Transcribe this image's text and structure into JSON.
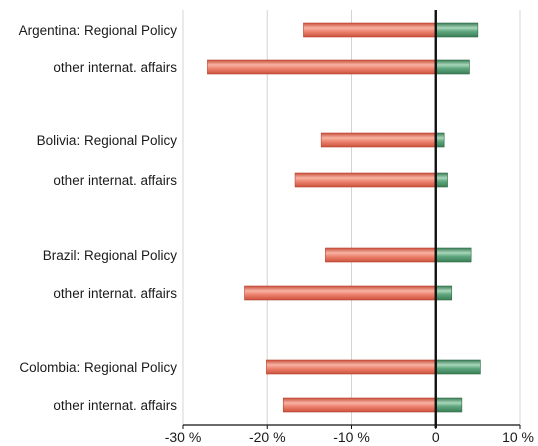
{
  "chart_data": {
    "type": "bar",
    "orientation": "horizontal",
    "categories": [
      "Argentina: Regional Policy",
      "other internat. affairs",
      "Bolivia: Regional Policy",
      "other internat. affairs",
      "Brazil: Regional Policy",
      "other internat. affairs",
      "Colombia: Regional Policy",
      "other internat. affairs"
    ],
    "series": [
      {
        "values": [
          -15.7,
          -27.1,
          -13.6,
          -16.7,
          -13.1,
          -22.7,
          -20.1,
          -18.1
        ],
        "color": "#e8705a"
      },
      {
        "values": [
          5.0,
          4.0,
          1.0,
          1.4,
          4.2,
          1.9,
          5.3,
          3.1
        ],
        "color": "#4f9a6e"
      }
    ],
    "xlim": [
      -30,
      10
    ],
    "xticks": [
      -30,
      -20,
      -10,
      0,
      10
    ],
    "tick_labels": [
      "-30 %",
      "-20 %",
      "-10 %",
      "0",
      "10 %"
    ],
    "grid": true,
    "title": "",
    "xlabel": "",
    "ylabel": ""
  }
}
